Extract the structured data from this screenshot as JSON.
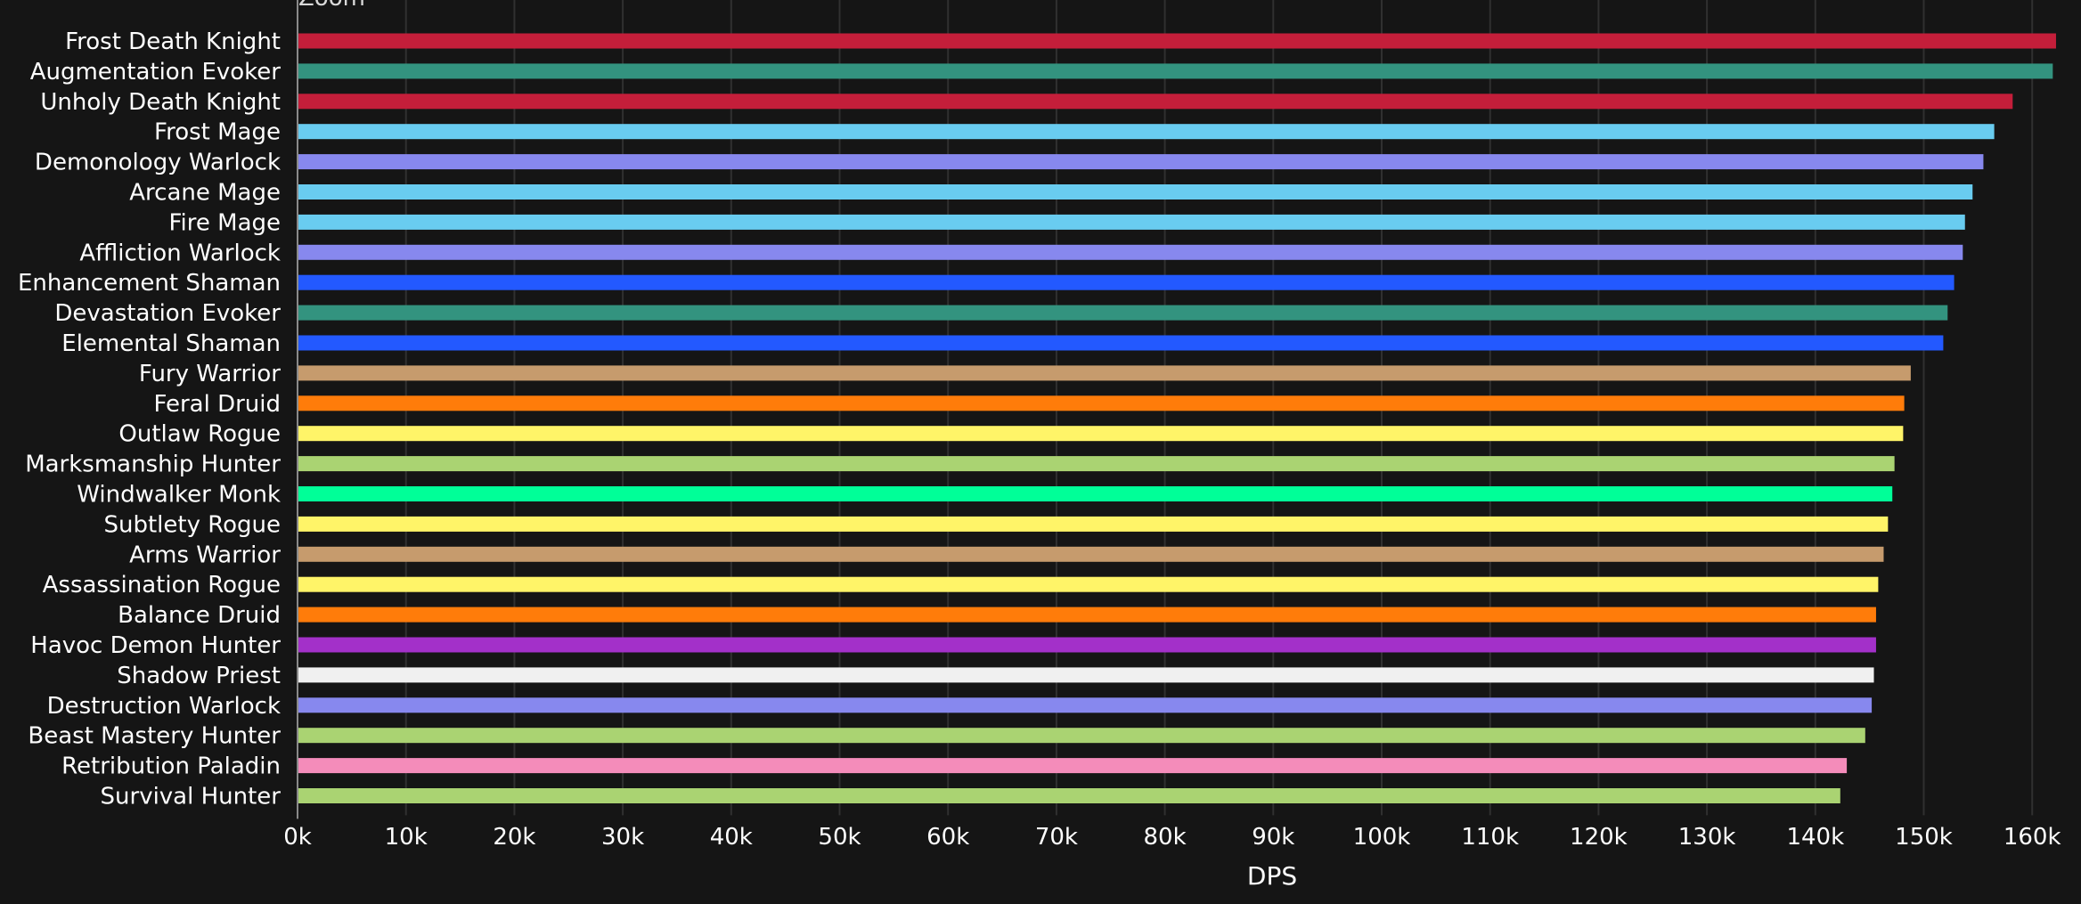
{
  "zoom_label": "Zoom",
  "chart_data": {
    "type": "bar",
    "orientation": "horizontal",
    "title": "",
    "xlabel": "DPS",
    "ylabel": "",
    "xlim": [
      0,
      162000
    ],
    "x_ticks": [
      "0k",
      "10k",
      "20k",
      "30k",
      "40k",
      "50k",
      "60k",
      "70k",
      "80k",
      "90k",
      "100k",
      "110k",
      "120k",
      "130k",
      "140k",
      "150k",
      "160k"
    ],
    "x_tick_values": [
      0,
      10000,
      20000,
      30000,
      40000,
      50000,
      60000,
      70000,
      80000,
      90000,
      100000,
      110000,
      120000,
      130000,
      140000,
      150000,
      160000
    ],
    "grid": true,
    "legend": "none",
    "categories": [
      "Frost Death Knight",
      "Augmentation Evoker",
      "Unholy Death Knight",
      "Frost Mage",
      "Demonology Warlock",
      "Arcane Mage",
      "Fire Mage",
      "Affliction Warlock",
      "Enhancement Shaman",
      "Devastation Evoker",
      "Elemental Shaman",
      "Fury Warrior",
      "Feral Druid",
      "Outlaw Rogue",
      "Marksmanship Hunter",
      "Windwalker Monk",
      "Subtlety Rogue",
      "Arms Warrior",
      "Assassination Rogue",
      "Balance Druid",
      "Havoc Demon Hunter",
      "Shadow Priest",
      "Destruction Warlock",
      "Beast Mastery Hunter",
      "Retribution Paladin",
      "Survival Hunter"
    ],
    "values": [
      162200,
      161900,
      158200,
      156500,
      155500,
      154500,
      153800,
      153600,
      152800,
      152200,
      151800,
      148800,
      148200,
      148100,
      147300,
      147100,
      146700,
      146300,
      145800,
      145600,
      145600,
      145400,
      145200,
      144600,
      142900,
      142300
    ],
    "colors": [
      "#C41E3A",
      "#33937F",
      "#C41E3A",
      "#69CCF0",
      "#8788EE",
      "#69CCF0",
      "#69CCF0",
      "#8788EE",
      "#2359FF",
      "#33937F",
      "#2359FF",
      "#C69B6D",
      "#FF7C0A",
      "#FFF468",
      "#AAD372",
      "#00FF98",
      "#FFF468",
      "#C69B6D",
      "#FFF468",
      "#FF7C0A",
      "#A330C9",
      "#F0F0F0",
      "#8788EE",
      "#AAD372",
      "#F48CBA",
      "#AAD372"
    ]
  }
}
